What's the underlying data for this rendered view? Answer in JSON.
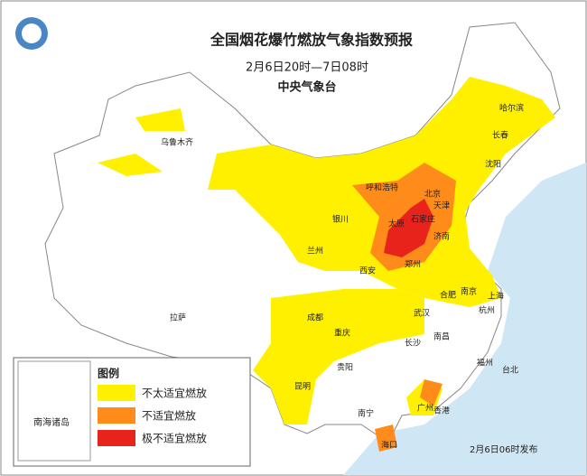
{
  "header": {
    "title": "全国烟花爆竹燃放气象指数预报",
    "subtitle": "2月6日20时—7日08时",
    "issuer": "中央气象台"
  },
  "legend": {
    "title": "图例",
    "items": [
      "不太适宜燃放",
      "不适宜燃放",
      "极不适宜燃放"
    ]
  },
  "inset": {
    "label": "南海诸岛"
  },
  "release": "2月6日06时发布",
  "cities": [
    "乌鲁木齐",
    "哈尔滨",
    "长春",
    "沈阳",
    "呼和浩特",
    "北京",
    "天津",
    "石家庄",
    "太原",
    "银川",
    "兰州",
    "济南",
    "郑州",
    "西安",
    "合肥",
    "南京",
    "上海",
    "杭州",
    "武汉",
    "成都",
    "重庆",
    "长沙",
    "南昌",
    "福州",
    "台北",
    "贵阳",
    "昆明",
    "南宁",
    "广州",
    "香港",
    "海口",
    "拉萨"
  ]
}
